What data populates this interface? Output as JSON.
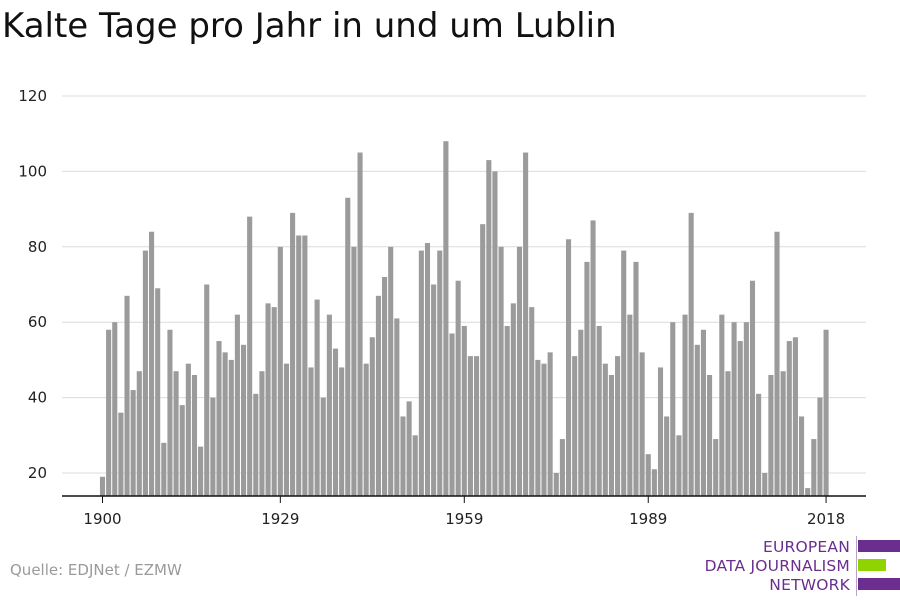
{
  "chart_data": {
    "type": "bar",
    "title": "Kalte Tage pro Jahr in und um Lublin",
    "xlabel": "",
    "ylabel": "",
    "x_start": 1900,
    "x_ticks": [
      "1900",
      "1929",
      "1959",
      "1989",
      "2018"
    ],
    "y_ticks": [
      "20",
      "40",
      "60",
      "80",
      "100",
      "120"
    ],
    "ylim": [
      14,
      120
    ],
    "grid": true,
    "bar_color": "#9b9b9b",
    "values": [
      19,
      58,
      60,
      36,
      67,
      42,
      47,
      79,
      84,
      69,
      28,
      58,
      47,
      38,
      49,
      46,
      27,
      70,
      40,
      55,
      52,
      50,
      62,
      54,
      88,
      41,
      47,
      65,
      64,
      80,
      49,
      89,
      83,
      83,
      48,
      66,
      40,
      62,
      53,
      48,
      93,
      80,
      105,
      49,
      56,
      67,
      72,
      80,
      61,
      35,
      39,
      30,
      79,
      81,
      70,
      79,
      108,
      57,
      71,
      59,
      51,
      51,
      86,
      103,
      100,
      80,
      59,
      65,
      80,
      105,
      64,
      50,
      49,
      52,
      20,
      29,
      82,
      51,
      58,
      76,
      87,
      59,
      49,
      46,
      51,
      79,
      62,
      76,
      52,
      25,
      21,
      48,
      35,
      60,
      30,
      62,
      89,
      54,
      58,
      46,
      29,
      62,
      47,
      60,
      55,
      60,
      71,
      41,
      20,
      46,
      84,
      47,
      55,
      56,
      35,
      16,
      29,
      40,
      58
    ]
  },
  "source": "Quelle: EDJNet / EZMW",
  "logo": {
    "line1": "EUROPEAN",
    "line2": "DATA JOURNALISM",
    "line3": "NETWORK",
    "purple": "#6b2e8f",
    "green": "#8fd400"
  }
}
